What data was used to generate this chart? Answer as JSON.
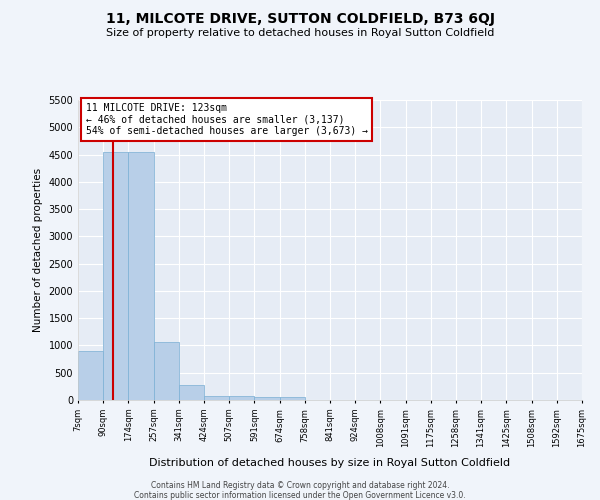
{
  "title": "11, MILCOTE DRIVE, SUTTON COLDFIELD, B73 6QJ",
  "subtitle": "Size of property relative to detached houses in Royal Sutton Coldfield",
  "xlabel": "Distribution of detached houses by size in Royal Sutton Coldfield",
  "ylabel": "Number of detached properties",
  "footer_line1": "Contains HM Land Registry data © Crown copyright and database right 2024.",
  "footer_line2": "Contains public sector information licensed under the Open Government Licence v3.0.",
  "annotation_title": "11 MILCOTE DRIVE: 123sqm",
  "annotation_line2": "← 46% of detached houses are smaller (3,137)",
  "annotation_line3": "54% of semi-detached houses are larger (3,673) →",
  "bar_color": "#b8cfe8",
  "bar_edge_color": "#7aafd4",
  "vline_color": "#cc0000",
  "vline_x": 123,
  "bin_edges": [
    7,
    90,
    174,
    257,
    341,
    424,
    507,
    591,
    674,
    758,
    841,
    924,
    1008,
    1091,
    1175,
    1258,
    1341,
    1425,
    1508,
    1592,
    1675
  ],
  "bar_heights": [
    900,
    4550,
    4550,
    1060,
    270,
    75,
    65,
    55,
    55,
    0,
    0,
    0,
    0,
    0,
    0,
    0,
    0,
    0,
    0,
    0
  ],
  "ylim": [
    0,
    5500
  ],
  "yticks": [
    0,
    500,
    1000,
    1500,
    2000,
    2500,
    3000,
    3500,
    4000,
    4500,
    5000,
    5500
  ],
  "background_color": "#f0f4fa",
  "plot_background_color": "#e6ecf5",
  "grid_color": "#ffffff",
  "annotation_box_color": "#ffffff",
  "annotation_box_edge_color": "#cc0000",
  "title_fontsize": 10,
  "subtitle_fontsize": 8
}
